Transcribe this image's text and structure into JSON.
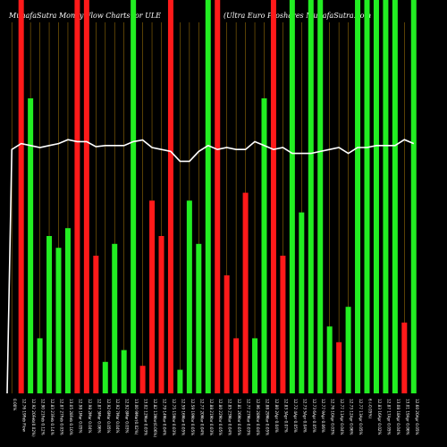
{
  "header": {
    "title_left": "MunafaSutra  Money  Flow  Charts for ULE",
    "title_right": "(Ultra  Euro  Proshares  MunafaSutra.com"
  },
  "chart_data": {
    "type": "bar",
    "title": "MunafaSutra  Money  Flow  Charts for ULE",
    "subtitle": "(Ultra  Euro  Proshares  MunafaSutra.com",
    "xlabel": "",
    "ylabel": "",
    "ylim": [
      0,
      100
    ],
    "grid": true,
    "colors": {
      "up": "#22ee22",
      "down": "#ff1a1a",
      "price_line": "#ffffff",
      "grid": "#b8860b",
      "background": "#000000"
    },
    "categories": [
      "0.00%",
      "12.76 19Feb Flow",
      "12.92 20Feb(0.02%)",
      "12.90 21Feb 0.12%",
      "12.83 23Feb 0.14%",
      "12.87 27Feb 0.03%",
      "13.05 28Feb 0.10%",
      "12.98 1Mar 0.05%",
      "12.98 2Mar 0.04%",
      "12.87 5Mar 0.06%",
      "12.92 6Mar 0.05%",
      "12.92 7Mar 0.04%",
      "12.92 8Mar 0.03%",
      "13.00 9Mar(0.02%)",
      "13.02 12Mar 0.03%",
      "12.82 13Mar(0.06%)",
      "12.79 14Mar 0.04%",
      "12.75 15Mar 0.03%",
      "12.59 16Mar 0.05%",
      "12.59 19Mar 0.05%",
      "12.77 20Mar 0.04%",
      "12.88 21Mar 0.03%",
      "12.80 22Mar 0.05%",
      "12.85 23Mar 0.04%",
      "12.81 26Mar 0.05%",
      "12.77 27Mar 0.03%",
      "12.96 28Mar 0.04%",
      "12.88 29Mar 0.05%",
      "12.80 2Apr 0.04%",
      "12.83 3Apr 0.07%",
      "12.72 4Apr 0.05%",
      "12.73 5Apr 0.04%",
      "12.73 6Apr 0.05%",
      "12.77 9Apr 0.06%",
      "12.76 10Apr 0.03%",
      "12.77 11Apr 0.04%",
      "12.73 12Apr 0.06%",
      "12.77 13Apr 0.05%",
      "6 (-0.05%)",
      "12.83 16Apr 0.02%",
      "12.87 17Apr 0.05%",
      "13.08 18Apr 0.04%",
      "13.01 19Apr 0.06%",
      "12.60 20Apr 0.05%"
    ],
    "series": [
      {
        "values": [
          0,
          100,
          75,
          14,
          40,
          37,
          42,
          100,
          100,
          35,
          8,
          38,
          11,
          100,
          7,
          49,
          40,
          100,
          6,
          49,
          38,
          100,
          100,
          30,
          14,
          51,
          14,
          75,
          100,
          35,
          100,
          46,
          100,
          100,
          17,
          13,
          22,
          100,
          100,
          100,
          100,
          100,
          18,
          100
        ],
        "colors": [
          "gray",
          "red",
          "green",
          "green",
          "green",
          "green",
          "green",
          "red",
          "red",
          "red",
          "green",
          "green",
          "green",
          "green",
          "red",
          "red",
          "red",
          "red",
          "green",
          "green",
          "green",
          "green",
          "red",
          "red",
          "red",
          "red",
          "green",
          "green",
          "red",
          "red",
          "green",
          "green",
          "green",
          "green",
          "green",
          "red",
          "green",
          "green",
          "green",
          "green",
          "green",
          "green",
          "red",
          "green"
        ]
      },
      {
        "name": "",
        "type": "line",
        "values": [
          62,
          63.5,
          63,
          62.5,
          63,
          63.5,
          64.5,
          64,
          64,
          62.7,
          63,
          63,
          63,
          64,
          64.4,
          62.5,
          62,
          61.5,
          59,
          59,
          61.5,
          63,
          62,
          62.5,
          62,
          62,
          64,
          63,
          62,
          62.5,
          61,
          61,
          61,
          61.5,
          62,
          62.5,
          61,
          62.5,
          62.5,
          63,
          63,
          63,
          64.5,
          63.5
        ]
      }
    ],
    "x_tick_labels": [
      "0.00%",
      "12.76 19Feb Flow",
      "12.92 20Feb(0.02%)",
      "12.90 21Feb 0.12%",
      "12.83 23Feb 0.14%",
      "12.87 27Feb 0.03%",
      "13.05 28Feb 0.10%",
      "12.98 1Mar 0.05%",
      "12.98 2Mar 0.04%",
      "12.87 5Mar 0.06%",
      "12.92 6Mar 0.05%",
      "12.92 7Mar 0.04%",
      "12.92 8Mar 0.03%",
      "13.00 9Mar(0.02%)",
      "13.02 12Mar 0.03%",
      "12.82 13Mar(0.06%)",
      "12.79 14Mar 0.04%",
      "12.75 15Mar 0.03%",
      "12.59 16Mar 0.05%",
      "12.59 19Mar 0.05%",
      "12.77 20Mar 0.04%",
      "12.88 21Mar 0.03%",
      "12.80 22Mar 0.05%",
      "12.85 23Mar 0.04%",
      "12.81 26Mar 0.05%",
      "12.77 27Mar 0.03%",
      "12.96 28Mar 0.04%",
      "12.88 29Mar 0.05%",
      "12.80 2Apr 0.04%",
      "12.83 3Apr 0.07%",
      "12.72 4Apr 0.05%",
      "12.73 5Apr 0.04%",
      "12.73 6Apr 0.05%",
      "12.77 9Apr 0.06%",
      "12.76 10Apr 0.03%",
      "12.77 11Apr 0.04%",
      "12.73 12Apr 0.06%",
      "12.77 13Apr 0.05%",
      "6 (-0.05%)",
      "12.83 16Apr 0.02%",
      "12.87 17Apr 0.05%",
      "13.08 18Apr 0.04%",
      "13.01 19Apr 0.06%",
      "12.60 20Apr 0.05%"
    ]
  }
}
